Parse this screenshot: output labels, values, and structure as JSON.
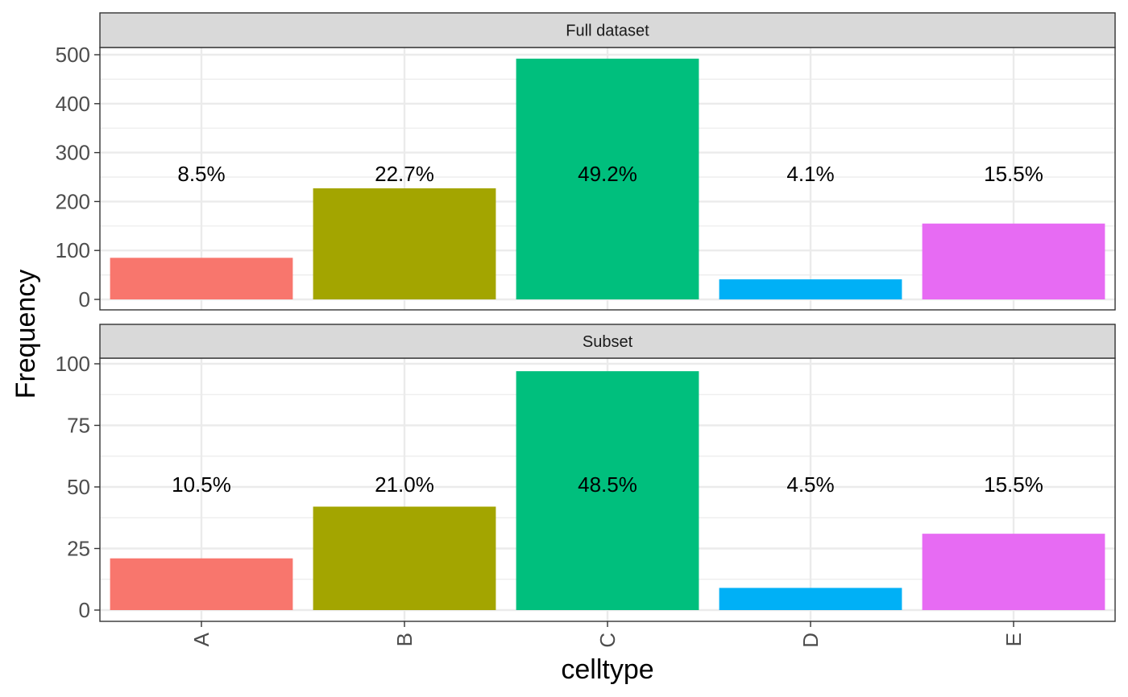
{
  "chart_data": {
    "type": "bar",
    "xlabel": "celltype",
    "ylabel": "Frequency",
    "categories": [
      "A",
      "B",
      "C",
      "D",
      "E"
    ],
    "colors": [
      "#F8766D",
      "#A3A500",
      "#00BF7D",
      "#00B0F6",
      "#E76BF3"
    ],
    "legend": "none",
    "grid": true,
    "panels": [
      {
        "title": "Full dataset",
        "values": [
          85,
          227,
          492,
          41,
          155
        ],
        "labels": [
          "8.5%",
          "22.7%",
          "49.2%",
          "4.1%",
          "15.5%"
        ],
        "ylim": [
          0,
          500
        ],
        "yticks": [
          "0",
          "100",
          "200",
          "300",
          "400",
          "500"
        ]
      },
      {
        "title": "Subset",
        "values": [
          21,
          42,
          97,
          9,
          31
        ],
        "labels": [
          "10.5%",
          "21.0%",
          "48.5%",
          "4.5%",
          "15.5%"
        ],
        "ylim": [
          0,
          100
        ],
        "yticks": [
          "0",
          "25",
          "50",
          "75",
          "100"
        ]
      }
    ]
  }
}
